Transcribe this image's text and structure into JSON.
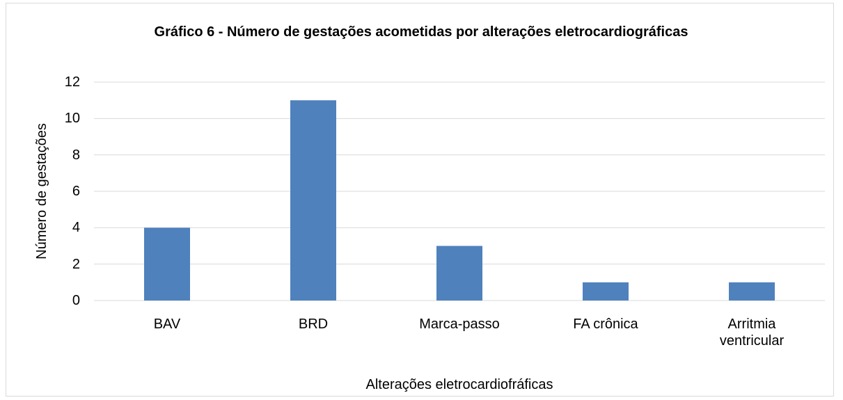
{
  "chart_data": {
    "type": "bar",
    "title": "Gráfico 6 - Número de gestações acometidas por alterações eletrocardiográficas",
    "x_label": "Alterações eletrocardiofráficas",
    "y_label": "Número de gestações",
    "categories": [
      "BAV",
      "BRD",
      "Marca-passo",
      "FA crônica",
      "Arritmia ventricular"
    ],
    "values": [
      4,
      11,
      3,
      1,
      1
    ],
    "color": "#4f81bd",
    "ylim": [
      0,
      12
    ],
    "yticks": [
      0,
      2,
      4,
      6,
      8,
      10,
      12
    ],
    "grid": true
  }
}
